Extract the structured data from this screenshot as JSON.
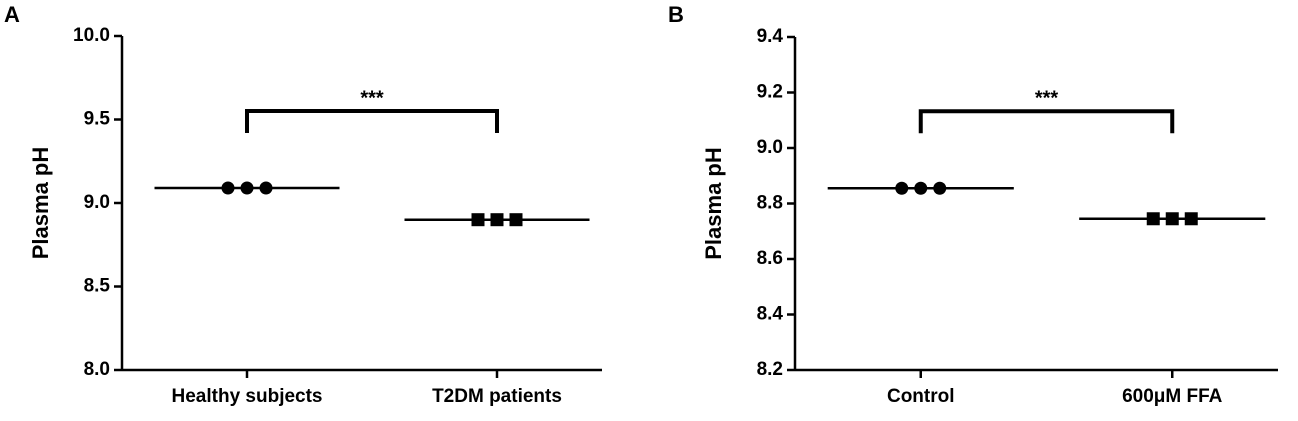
{
  "chart_data": [
    {
      "type": "dot",
      "panel": "A",
      "ylabel": "Plasma pH",
      "categories": [
        "Healthy subjects",
        "T2DM patients"
      ],
      "points": [
        [
          9.09,
          9.09,
          9.09
        ],
        [
          8.9,
          8.9,
          8.9
        ]
      ],
      "means": [
        9.09,
        8.9
      ],
      "markers": [
        "circle",
        "square"
      ],
      "color": "#000000",
      "annotation": "***",
      "ylim": [
        8.0,
        10.0
      ],
      "yticks": [
        {
          "value": 8,
          "label": "8.0"
        },
        {
          "value": 8.5,
          "label": "8.5"
        },
        {
          "value": 9,
          "label": "9.0"
        },
        {
          "value": 9.5,
          "label": "9.5"
        },
        {
          "value": 10,
          "label": "10.0"
        }
      ]
    },
    {
      "type": "dot",
      "panel": "B",
      "ylabel": "Plasma pH",
      "categories": [
        "Control",
        "600μM FFA"
      ],
      "points": [
        [
          8.855,
          8.855,
          8.855
        ],
        [
          8.745,
          8.745,
          8.745
        ]
      ],
      "means": [
        8.855,
        8.745
      ],
      "markers": [
        "circle",
        "square"
      ],
      "color": "#000000",
      "annotation": "***",
      "ylim": [
        8.2,
        9.4
      ],
      "yticks": [
        8.2,
        8.4,
        8.6,
        8.8,
        {
          "value": 9,
          "label": "9.0"
        },
        9.2,
        9.4
      ]
    }
  ]
}
